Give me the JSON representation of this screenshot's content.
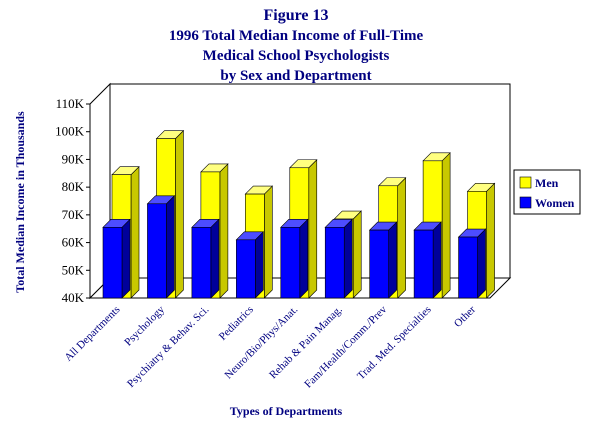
{
  "chart_data": {
    "type": "bar",
    "title_lines": [
      "Figure 13",
      "1996 Total Median Income of Full-Time",
      "Medical School Psychologists",
      "by Sex and Department"
    ],
    "xlabel": "Types of Departments",
    "ylabel": "Total Median Income in Thousands",
    "ylim": [
      40,
      110
    ],
    "yticks": [
      "40K",
      "50K",
      "60K",
      "70K",
      "80K",
      "90K",
      "100K",
      "110K"
    ],
    "categories": [
      "All Departments",
      "Psychology",
      "Psychiatry & Behav. Sci.",
      "Pediatrics",
      "Neuro/Bio/Phys/Anat.",
      "Rehab & Pain Manag.",
      "Fam/Health/Comm./Prev",
      "Trad. Med. Specialties",
      "Other"
    ],
    "series": [
      {
        "name": "Men",
        "color": "#ffff00",
        "values": [
          84.5,
          97.5,
          85.5,
          77.5,
          87,
          68.5,
          80.5,
          89.5,
          78.5
        ]
      },
      {
        "name": "Women",
        "color": "#0000ff",
        "values": [
          65.5,
          74,
          65.5,
          61,
          65.5,
          65.5,
          64.5,
          64.5,
          62
        ]
      }
    ],
    "legend_position": "right",
    "grid": false
  }
}
